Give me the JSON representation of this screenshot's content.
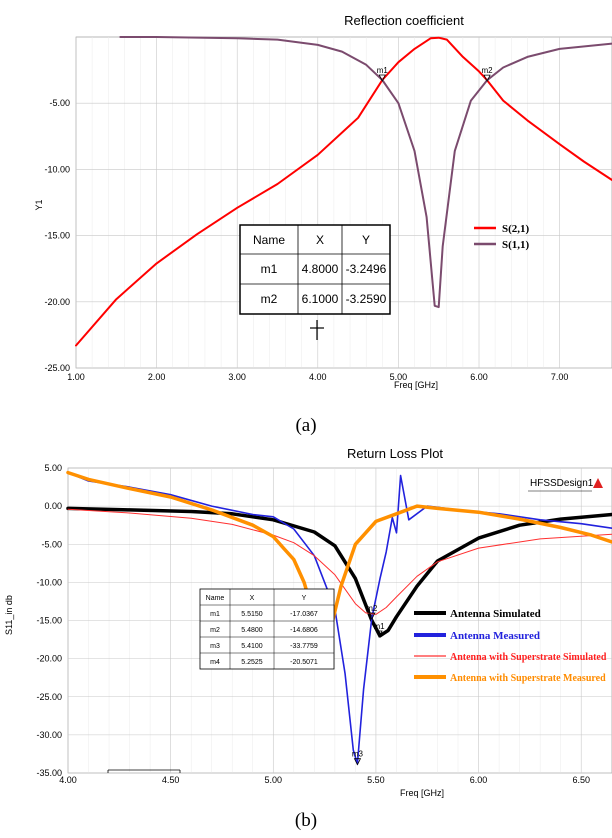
{
  "chart_data": [
    {
      "panel": "(a)",
      "type": "line",
      "title": "Reflection coefficient",
      "xlabel": "Freq [GHz]",
      "ylabel": "Y1",
      "xlim": [
        1.0,
        7.65
      ],
      "ylim": [
        -25.0,
        0.0
      ],
      "xticks": [
        "1.00",
        "2.00",
        "3.00",
        "4.00",
        "5.00",
        "6.00",
        "7.00"
      ],
      "yticks": [
        "-5.00",
        "-10.00",
        "-15.00",
        "-20.00",
        "-25.00"
      ],
      "grid": true,
      "legend_position": "right",
      "series": [
        {
          "name": "S(2,1)",
          "color": "#ff0000",
          "x": [
            1.0,
            1.5,
            2.0,
            2.5,
            3.0,
            3.5,
            4.0,
            4.5,
            4.8,
            5.0,
            5.2,
            5.4,
            5.5,
            5.6,
            5.8,
            6.0,
            6.1,
            6.3,
            6.6,
            7.0,
            7.3,
            7.65
          ],
          "y": [
            -23.3,
            -19.8,
            -17.1,
            -14.9,
            -12.9,
            -11.1,
            -8.9,
            -6.1,
            -3.25,
            -1.9,
            -0.9,
            -0.1,
            -0.05,
            -0.2,
            -1.5,
            -2.6,
            -3.26,
            -4.8,
            -6.3,
            -8.1,
            -9.4,
            -10.8
          ]
        },
        {
          "name": "S(1,1)",
          "color": "#7b4b6e",
          "x": [
            1.55,
            2.0,
            3.0,
            3.5,
            4.0,
            4.3,
            4.6,
            4.8,
            5.0,
            5.2,
            5.35,
            5.45,
            5.5,
            5.55,
            5.7,
            5.9,
            6.1,
            6.3,
            6.6,
            7.0,
            7.65
          ],
          "y": [
            0.0,
            0.0,
            -0.1,
            -0.2,
            -0.6,
            -1.1,
            -2.1,
            -3.25,
            -5.0,
            -8.6,
            -13.6,
            -20.3,
            -20.4,
            -15.8,
            -8.6,
            -4.8,
            -3.26,
            -2.3,
            -1.5,
            -0.9,
            -0.5
          ]
        }
      ],
      "markers": [
        {
          "name": "m1",
          "x": 4.8,
          "y": -3.2496
        },
        {
          "name": "m2",
          "x": 6.1,
          "y": -3.259
        }
      ],
      "marker_table": {
        "headers": [
          "Name",
          "X",
          "Y"
        ],
        "rows": [
          [
            "m1",
            "4.8000",
            "-3.2496"
          ],
          [
            "m2",
            "6.1000",
            "-3.2590"
          ]
        ]
      }
    },
    {
      "panel": "(b)",
      "type": "line",
      "title": "Return Loss Plot",
      "xlabel": "Freq [GHz]",
      "ylabel": "S11_in db",
      "xlim": [
        4.0,
        6.65
      ],
      "ylim": [
        -35.0,
        5.0
      ],
      "xticks": [
        "4.00",
        "4.50",
        "5.00",
        "5.50",
        "6.00",
        "6.50"
      ],
      "yticks": [
        "5.00",
        "0.00",
        "-5.00",
        "-10.00",
        "-15.00",
        "-20.00",
        "-25.00",
        "-30.00",
        "-35.00"
      ],
      "grid": true,
      "legend_position": "right",
      "badge": "HFSSDesign1",
      "series": [
        {
          "name": "Antenna Simulated",
          "color": "#000000",
          "x": [
            4.0,
            4.3,
            4.6,
            4.8,
            5.0,
            5.2,
            5.3,
            5.4,
            5.48,
            5.52,
            5.56,
            5.6,
            5.7,
            5.8,
            6.0,
            6.2,
            6.4,
            6.65
          ],
          "y": [
            -0.3,
            -0.5,
            -0.7,
            -1.0,
            -1.8,
            -3.4,
            -5.2,
            -9.5,
            -15.0,
            -17.0,
            -16.3,
            -14.5,
            -10.5,
            -7.2,
            -4.2,
            -2.5,
            -1.7,
            -1.1
          ]
        },
        {
          "name": "Antenna Measured",
          "color": "#2222dd",
          "x": [
            4.0,
            4.1,
            4.3,
            4.5,
            4.7,
            4.9,
            5.0,
            5.1,
            5.2,
            5.3,
            5.35,
            5.39,
            5.41,
            5.44,
            5.48,
            5.52,
            5.55,
            5.58,
            5.6,
            5.62,
            5.66,
            5.75,
            5.9,
            6.1,
            6.3,
            6.5,
            6.65
          ],
          "y": [
            4.4,
            3.3,
            2.5,
            1.5,
            0.0,
            -1.1,
            -1.4,
            -3.0,
            -6.5,
            -13.5,
            -22.0,
            -32.0,
            -33.8,
            -24.0,
            -14.7,
            -9.5,
            -6.0,
            -1.5,
            -3.5,
            4.0,
            -1.8,
            0.0,
            -0.5,
            -1.0,
            -1.8,
            -2.3,
            -2.9
          ]
        },
        {
          "name": "Antenna with Superstrate Simulated",
          "color": "#ff3030",
          "x": [
            4.0,
            4.3,
            4.6,
            4.8,
            5.0,
            5.1,
            5.2,
            5.3,
            5.4,
            5.45,
            5.5,
            5.55,
            5.6,
            5.7,
            5.8,
            6.0,
            6.3,
            6.65
          ],
          "y": [
            -0.4,
            -0.9,
            -1.6,
            -2.4,
            -3.8,
            -4.8,
            -6.5,
            -9.0,
            -12.8,
            -14.0,
            -14.2,
            -13.3,
            -11.9,
            -9.2,
            -7.3,
            -5.5,
            -4.3,
            -3.7
          ]
        },
        {
          "name": "Antenna with Superstrate Measured",
          "color": "#ff9000",
          "x": [
            4.0,
            4.1,
            4.3,
            4.5,
            4.7,
            4.9,
            5.0,
            5.05,
            5.1,
            5.15,
            5.2,
            5.23,
            5.2525,
            5.28,
            5.33,
            5.4,
            5.5,
            5.6,
            5.7,
            5.8,
            6.0,
            6.2,
            6.4,
            6.55,
            6.65
          ],
          "y": [
            4.4,
            3.5,
            2.3,
            1.2,
            -0.5,
            -2.5,
            -4.0,
            -5.5,
            -7.0,
            -10.0,
            -14.5,
            -18.5,
            -20.5,
            -16.0,
            -10.5,
            -5.0,
            -2.0,
            -1.0,
            0.0,
            -0.3,
            -0.8,
            -1.7,
            -2.8,
            -3.8,
            -4.7
          ]
        }
      ],
      "markers": [
        {
          "name": "m1",
          "x": 5.515,
          "y": -17.0367
        },
        {
          "name": "m2",
          "x": 5.48,
          "y": -14.6806
        },
        {
          "name": "m3",
          "x": 5.41,
          "y": -33.7759
        },
        {
          "name": "m4",
          "x": 5.2525,
          "y": -20.5071
        }
      ],
      "marker_table": {
        "headers": [
          "Name",
          "X",
          "Y"
        ],
        "rows": [
          [
            "m1",
            "5.5150",
            "-17.0367"
          ],
          [
            "m2",
            "5.4800",
            "-14.6806"
          ],
          [
            "m3",
            "5.4100",
            "-33.7759"
          ],
          [
            "m4",
            "5.2525",
            "-20.5071"
          ]
        ]
      }
    }
  ]
}
